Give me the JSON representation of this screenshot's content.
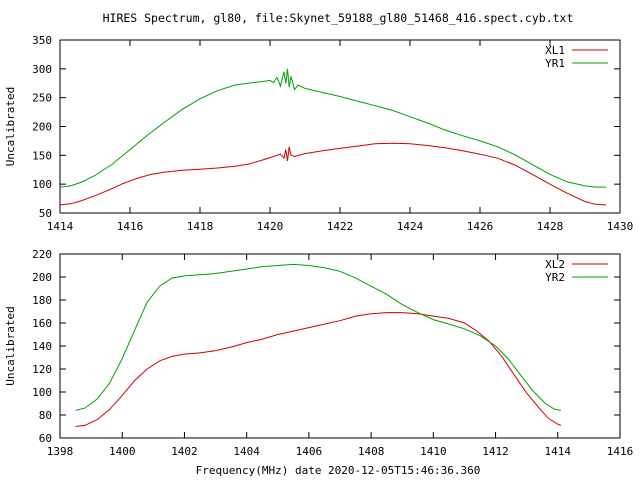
{
  "title": "HIRES Spectrum, gl80, file:Skynet_59188_gl80_51468_416.spect.cyb.txt",
  "xlabel": "Frequency(MHz) date 2020-12-05T15:46:36.360",
  "colors": {
    "red": "#d00000",
    "green": "#00a000"
  },
  "chart_data": [
    {
      "type": "line",
      "ylabel": "Uncalibrated",
      "xlim": [
        1414,
        1430
      ],
      "ylim": [
        50,
        350
      ],
      "xticks": [
        1414,
        1416,
        1418,
        1420,
        1422,
        1424,
        1426,
        1428,
        1430
      ],
      "yticks": [
        50,
        100,
        150,
        200,
        250,
        300,
        350
      ],
      "series": [
        {
          "name": "XL1",
          "color": "#d00000",
          "points": [
            [
              1414.0,
              64
            ],
            [
              1414.3,
              66
            ],
            [
              1414.6,
              71
            ],
            [
              1415.0,
              80
            ],
            [
              1415.4,
              90
            ],
            [
              1415.8,
              101
            ],
            [
              1416.2,
              110
            ],
            [
              1416.6,
              117
            ],
            [
              1417.0,
              121
            ],
            [
              1417.5,
              124
            ],
            [
              1418.0,
              126
            ],
            [
              1418.5,
              128
            ],
            [
              1419.0,
              131
            ],
            [
              1419.4,
              135
            ],
            [
              1419.8,
              142
            ],
            [
              1420.1,
              148
            ],
            [
              1420.3,
              152
            ],
            [
              1420.4,
              145
            ],
            [
              1420.45,
              160
            ],
            [
              1420.5,
              140
            ],
            [
              1420.55,
              165
            ],
            [
              1420.6,
              150
            ],
            [
              1420.7,
              148
            ],
            [
              1421.0,
              153
            ],
            [
              1421.5,
              158
            ],
            [
              1422.0,
              162
            ],
            [
              1422.5,
              166
            ],
            [
              1423.0,
              170
            ],
            [
              1423.5,
              171
            ],
            [
              1424.0,
              170
            ],
            [
              1424.5,
              167
            ],
            [
              1425.0,
              163
            ],
            [
              1425.5,
              158
            ],
            [
              1426.0,
              152
            ],
            [
              1426.5,
              145
            ],
            [
              1427.0,
              133
            ],
            [
              1427.5,
              117
            ],
            [
              1428.0,
              100
            ],
            [
              1428.5,
              84
            ],
            [
              1429.0,
              70
            ],
            [
              1429.3,
              65
            ],
            [
              1429.6,
              64
            ]
          ]
        },
        {
          "name": "YR1",
          "color": "#00a000",
          "points": [
            [
              1414.0,
              95
            ],
            [
              1414.3,
              97
            ],
            [
              1414.6,
              103
            ],
            [
              1415.0,
              115
            ],
            [
              1415.5,
              135
            ],
            [
              1416.0,
              160
            ],
            [
              1416.5,
              185
            ],
            [
              1417.0,
              208
            ],
            [
              1417.5,
              230
            ],
            [
              1418.0,
              248
            ],
            [
              1418.5,
              262
            ],
            [
              1419.0,
              272
            ],
            [
              1419.5,
              276
            ],
            [
              1419.8,
              278
            ],
            [
              1420.0,
              280
            ],
            [
              1420.1,
              276
            ],
            [
              1420.2,
              285
            ],
            [
              1420.3,
              270
            ],
            [
              1420.4,
              295
            ],
            [
              1420.45,
              275
            ],
            [
              1420.5,
              300
            ],
            [
              1420.55,
              268
            ],
            [
              1420.6,
              287
            ],
            [
              1420.7,
              264
            ],
            [
              1420.8,
              272
            ],
            [
              1421.0,
              266
            ],
            [
              1421.5,
              259
            ],
            [
              1422.0,
              252
            ],
            [
              1422.5,
              244
            ],
            [
              1423.0,
              236
            ],
            [
              1423.5,
              228
            ],
            [
              1424.0,
              217
            ],
            [
              1424.5,
              206
            ],
            [
              1425.0,
              194
            ],
            [
              1425.5,
              184
            ],
            [
              1426.0,
              175
            ],
            [
              1426.5,
              165
            ],
            [
              1427.0,
              151
            ],
            [
              1427.5,
              134
            ],
            [
              1428.0,
              117
            ],
            [
              1428.5,
              104
            ],
            [
              1429.0,
              97
            ],
            [
              1429.3,
              95
            ],
            [
              1429.6,
              95
            ]
          ]
        }
      ]
    },
    {
      "type": "line",
      "ylabel": "Uncalibrated",
      "xlim": [
        1398,
        1416
      ],
      "ylim": [
        60,
        220
      ],
      "xticks": [
        1398,
        1400,
        1402,
        1404,
        1406,
        1408,
        1410,
        1412,
        1414,
        1416
      ],
      "yticks": [
        60,
        80,
        100,
        120,
        140,
        160,
        180,
        200,
        220
      ],
      "series": [
        {
          "name": "XL2",
          "color": "#d00000",
          "points": [
            [
              1398.5,
              70
            ],
            [
              1398.8,
              71
            ],
            [
              1399.2,
              76
            ],
            [
              1399.6,
              85
            ],
            [
              1400.0,
              97
            ],
            [
              1400.4,
              110
            ],
            [
              1400.8,
              120
            ],
            [
              1401.2,
              127
            ],
            [
              1401.6,
              131
            ],
            [
              1402.0,
              133
            ],
            [
              1402.5,
              134
            ],
            [
              1403.0,
              136
            ],
            [
              1403.5,
              139
            ],
            [
              1404.0,
              143
            ],
            [
              1404.5,
              146
            ],
            [
              1405.0,
              150
            ],
            [
              1405.5,
              153
            ],
            [
              1406.0,
              156
            ],
            [
              1406.5,
              159
            ],
            [
              1407.0,
              162
            ],
            [
              1407.5,
              166
            ],
            [
              1408.0,
              168
            ],
            [
              1408.5,
              169
            ],
            [
              1409.0,
              169
            ],
            [
              1409.5,
              168
            ],
            [
              1410.0,
              166
            ],
            [
              1410.5,
              164
            ],
            [
              1411.0,
              160
            ],
            [
              1411.4,
              153
            ],
            [
              1411.8,
              144
            ],
            [
              1412.2,
              131
            ],
            [
              1412.6,
              115
            ],
            [
              1413.0,
              99
            ],
            [
              1413.4,
              86
            ],
            [
              1413.7,
              77
            ],
            [
              1414.0,
              72
            ],
            [
              1414.1,
              71
            ]
          ]
        },
        {
          "name": "YR2",
          "color": "#00a000",
          "points": [
            [
              1398.5,
              84
            ],
            [
              1398.8,
              86
            ],
            [
              1399.2,
              94
            ],
            [
              1399.6,
              108
            ],
            [
              1400.0,
              129
            ],
            [
              1400.4,
              154
            ],
            [
              1400.8,
              178
            ],
            [
              1401.2,
              192
            ],
            [
              1401.6,
              199
            ],
            [
              1402.0,
              201
            ],
            [
              1402.5,
              202
            ],
            [
              1403.0,
              203
            ],
            [
              1403.5,
              205
            ],
            [
              1404.0,
              207
            ],
            [
              1404.5,
              209
            ],
            [
              1405.0,
              210
            ],
            [
              1405.5,
              211
            ],
            [
              1406.0,
              210
            ],
            [
              1406.5,
              208
            ],
            [
              1407.0,
              205
            ],
            [
              1407.5,
              199
            ],
            [
              1408.0,
              192
            ],
            [
              1408.5,
              185
            ],
            [
              1409.0,
              176
            ],
            [
              1409.5,
              169
            ],
            [
              1410.0,
              163
            ],
            [
              1410.5,
              159
            ],
            [
              1411.0,
              155
            ],
            [
              1411.5,
              149
            ],
            [
              1412.0,
              140
            ],
            [
              1412.4,
              129
            ],
            [
              1412.8,
              115
            ],
            [
              1413.2,
              101
            ],
            [
              1413.6,
              90
            ],
            [
              1413.9,
              85
            ],
            [
              1414.1,
              84
            ]
          ]
        }
      ]
    }
  ]
}
